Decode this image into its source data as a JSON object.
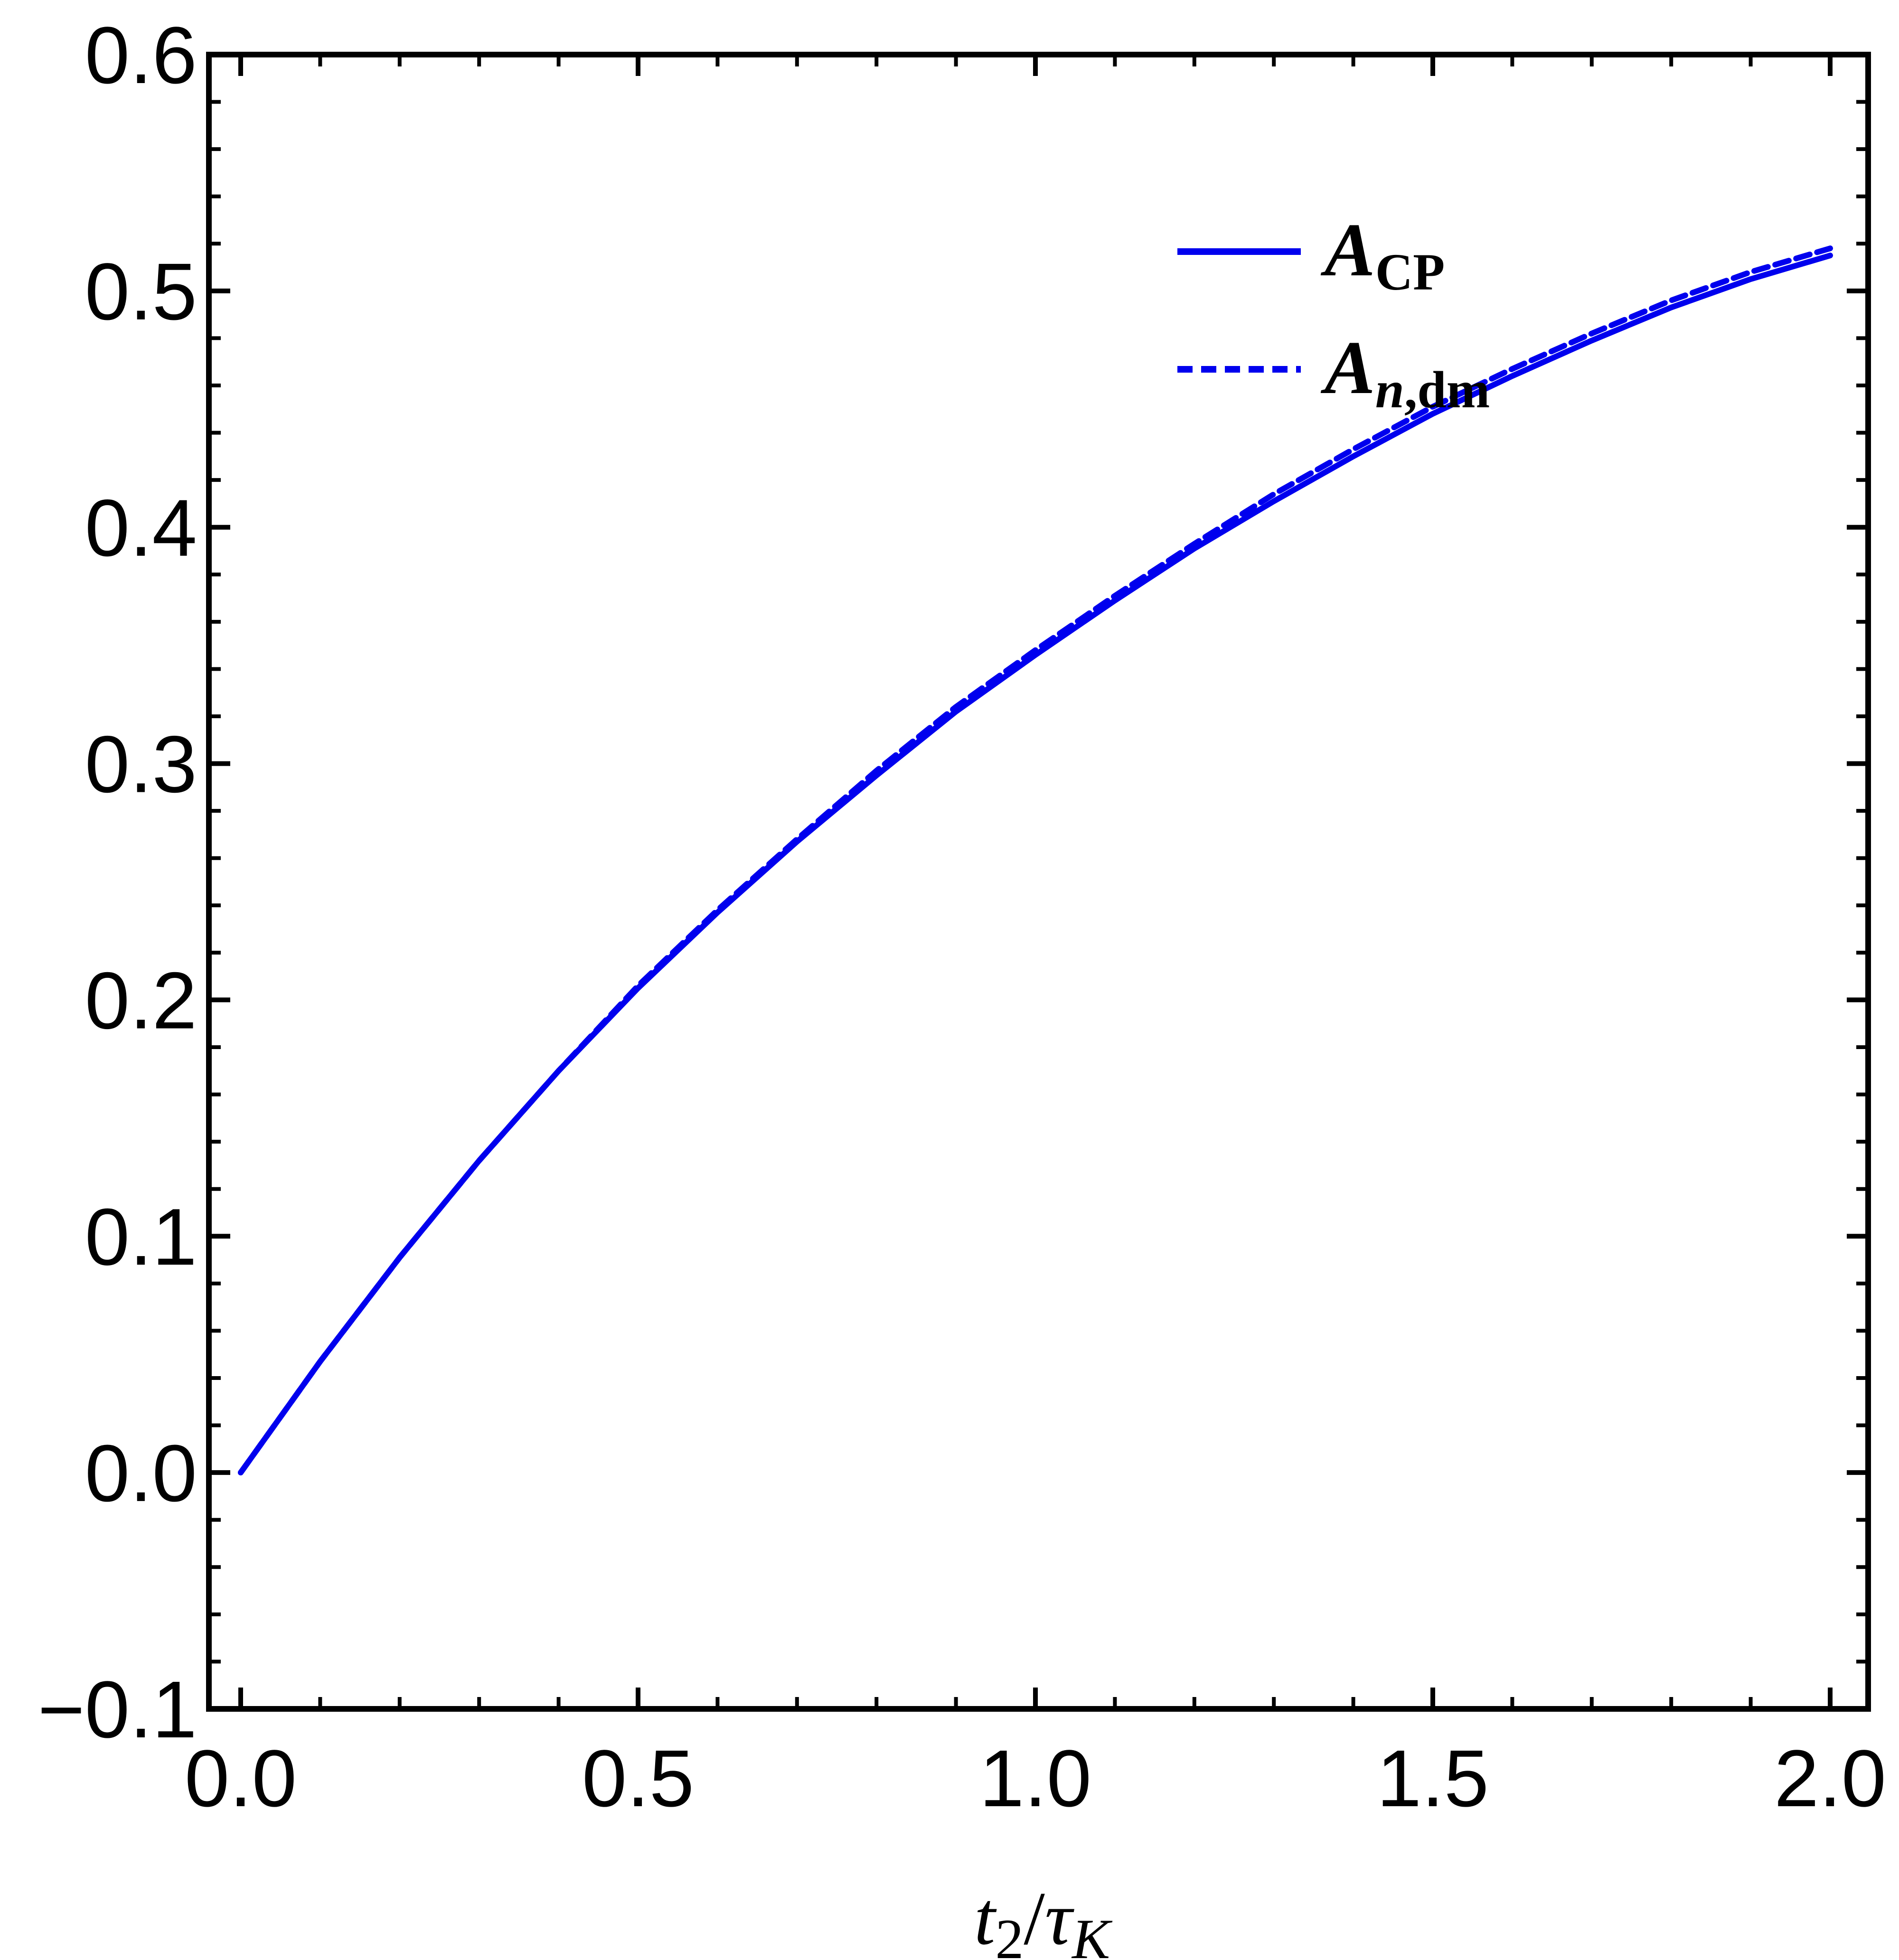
{
  "chart_data": {
    "type": "line",
    "xlim": [
      0.0,
      2.0
    ],
    "ylim": [
      -0.1,
      0.6
    ],
    "x_ticks": [
      "0.0",
      "0.5",
      "1.0",
      "1.5",
      "2.0"
    ],
    "y_ticks": [
      "−0.1",
      "0.0",
      "0.1",
      "0.2",
      "0.3",
      "0.4",
      "0.5",
      "0.6"
    ],
    "xlabel": {
      "main": "t",
      "sub": "2",
      "sep": "/",
      "main2": "τ",
      "sub2": "K"
    },
    "ylabel": "",
    "grid": false,
    "legend_position": "top-right",
    "series": [
      {
        "name": "A_CP",
        "legend": {
          "main": "A",
          "sub": "CP",
          "sub_italic_part": ""
        },
        "style": "solid",
        "color": "#0000ee",
        "x": [
          0.0,
          0.1,
          0.2,
          0.3,
          0.4,
          0.5,
          0.6,
          0.7,
          0.8,
          0.9,
          1.0,
          1.1,
          1.2,
          1.3,
          1.4,
          1.5,
          1.6,
          1.7,
          1.8,
          1.9,
          2.0
        ],
        "y": [
          0.0,
          0.047,
          0.091,
          0.132,
          0.17,
          0.205,
          0.237,
          0.267,
          0.295,
          0.322,
          0.346,
          0.369,
          0.391,
          0.411,
          0.43,
          0.448,
          0.464,
          0.479,
          0.493,
          0.505,
          0.515
        ]
      },
      {
        "name": "A_n,dm",
        "legend": {
          "main": "A",
          "sub": ",dm",
          "sub_italic_part": "n"
        },
        "style": "dashed",
        "color": "#0000ee",
        "x": [
          0.0,
          0.1,
          0.2,
          0.3,
          0.4,
          0.5,
          0.6,
          0.7,
          0.8,
          0.9,
          1.0,
          1.1,
          1.2,
          1.3,
          1.4,
          1.5,
          1.6,
          1.7,
          1.8,
          1.9,
          2.0
        ],
        "y": [
          0.0,
          0.047,
          0.091,
          0.132,
          0.17,
          0.206,
          0.238,
          0.268,
          0.297,
          0.324,
          0.348,
          0.371,
          0.393,
          0.414,
          0.433,
          0.451,
          0.467,
          0.482,
          0.496,
          0.508,
          0.518
        ]
      }
    ]
  }
}
